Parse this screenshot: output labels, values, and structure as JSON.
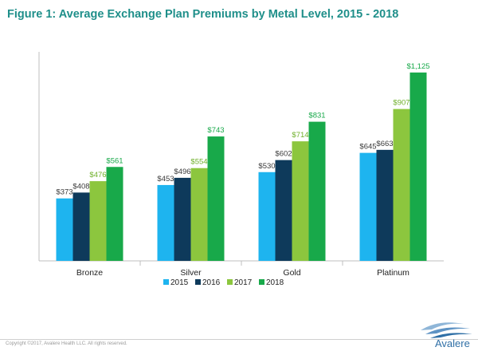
{
  "title": "Figure 1: Average Exchange Plan Premiums by Metal Level, 2015 - 2018",
  "footer": {
    "copyright": "Copyright ©2017, Avalere Health LLC. All rights reserved.",
    "logo_text": "Avalere"
  },
  "colors": {
    "title": "#1f8f8a",
    "s2015": "#1eb4ef",
    "s2016": "#0e3a5b",
    "s2017": "#8cc63e",
    "s2018": "#18a94a",
    "logo": "#2f6fa6"
  },
  "chart_data": {
    "type": "bar",
    "title": "Figure 1: Average Exchange Plan Premiums by Metal Level, 2015 - 2018",
    "categories": [
      "Bronze",
      "Silver",
      "Gold",
      "Platinum"
    ],
    "series": [
      {
        "name": "2015",
        "color": "#1eb4ef",
        "label_color": "#3a3a3a",
        "values": [
          373,
          453,
          530,
          645
        ],
        "labels": [
          "$373",
          "$453",
          "$530",
          "$645"
        ]
      },
      {
        "name": "2016",
        "color": "#0e3a5b",
        "label_color": "#3a3a3a",
        "values": [
          408,
          496,
          602,
          663
        ],
        "labels": [
          "$408",
          "$496",
          "$602",
          "$663"
        ]
      },
      {
        "name": "2017",
        "color": "#8cc63e",
        "label_color": "#6fb02a",
        "values": [
          476,
          554,
          714,
          907
        ],
        "labels": [
          "$476",
          "$554",
          "$714",
          "$907"
        ]
      },
      {
        "name": "2018",
        "color": "#18a94a",
        "label_color": "#18a94a",
        "values": [
          561,
          743,
          831,
          1125
        ],
        "labels": [
          "$561",
          "$743",
          "$831",
          "$1,125"
        ]
      }
    ],
    "ylim": [
      0,
      1200
    ],
    "grid": false,
    "legend": "bottom"
  }
}
